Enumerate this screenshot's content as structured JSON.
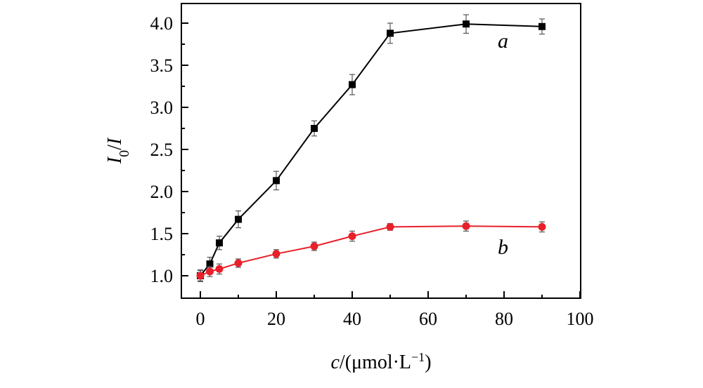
{
  "chart_data": {
    "type": "line",
    "xlabel": {
      "italic": "c",
      "rest": "/(μmol·L",
      "sup": "−1",
      "close": ")"
    },
    "ylabel": {
      "main": "I",
      "sub": "0",
      "rest": "/",
      "italic2": "I"
    },
    "xlim": [
      -5,
      100
    ],
    "ylim": [
      0.85,
      4.2
    ],
    "xticks": [
      0,
      20,
      40,
      60,
      80,
      100
    ],
    "yticks": [
      1.0,
      1.5,
      2.0,
      2.5,
      3.0,
      3.5,
      4.0
    ],
    "ytick_labels": [
      "1.0",
      "1.5",
      "2.0",
      "2.5",
      "3.0",
      "3.5",
      "4.0"
    ],
    "xtick_labels": [
      "0",
      "20",
      "40",
      "60",
      "80",
      "100"
    ],
    "series": [
      {
        "name": "a",
        "color": "#000000",
        "marker": "square",
        "x": [
          0,
          2.5,
          5,
          10,
          20,
          30,
          40,
          50,
          70,
          90
        ],
        "y": [
          1.0,
          1.14,
          1.39,
          1.67,
          2.13,
          2.75,
          3.27,
          3.88,
          3.99,
          3.96
        ],
        "err": [
          0.07,
          0.08,
          0.08,
          0.1,
          0.11,
          0.09,
          0.12,
          0.12,
          0.11,
          0.09
        ]
      },
      {
        "name": "b",
        "color": "#e8202a",
        "marker": "circle",
        "x": [
          0,
          2.5,
          5,
          10,
          20,
          30,
          40,
          50,
          70,
          90
        ],
        "y": [
          1.0,
          1.05,
          1.08,
          1.15,
          1.26,
          1.35,
          1.47,
          1.58,
          1.59,
          1.58
        ],
        "err": [
          0.06,
          0.06,
          0.06,
          0.05,
          0.05,
          0.05,
          0.06,
          0.04,
          0.06,
          0.06
        ]
      }
    ]
  }
}
